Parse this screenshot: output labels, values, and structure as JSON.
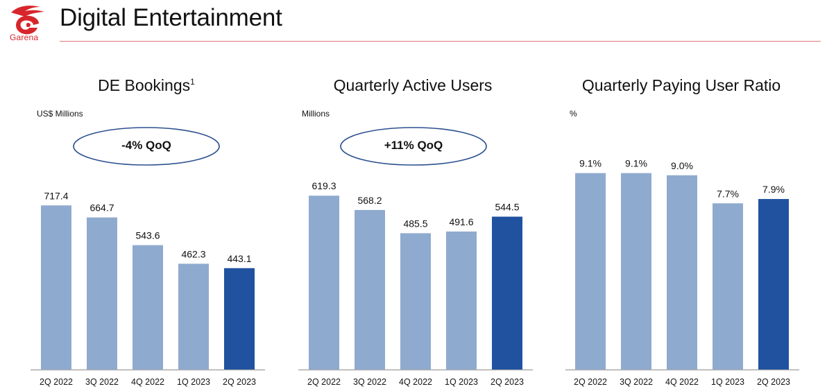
{
  "header": {
    "logo_text": "Garena",
    "title": "Digital Entertainment"
  },
  "colors": {
    "brand_red": "#d7262b",
    "bar_light": "#8faacf",
    "bar_highlight": "#21529f",
    "badge_outline": "#2b4f8f",
    "axis": "#aaaaaa"
  },
  "panels": [
    {
      "title": "DE Bookings",
      "title_footnote": "1",
      "unit": "US$ Millions",
      "badge": "-4% QoQ"
    },
    {
      "title": "Quarterly Active Users",
      "title_footnote": "",
      "unit": "Millions",
      "badge": "+11% QoQ"
    },
    {
      "title": "Quarterly Paying User Ratio",
      "title_footnote": "",
      "unit": "%",
      "badge": ""
    }
  ],
  "chart_data": [
    {
      "type": "bar",
      "title": "DE Bookings",
      "ylabel": "US$ Millions",
      "xlabel": "",
      "categories": [
        "2Q 2022",
        "3Q 2022",
        "4Q 2022",
        "1Q 2023",
        "2Q 2023"
      ],
      "values": [
        717.4,
        664.7,
        543.6,
        462.3,
        443.1
      ],
      "labels": [
        "717.4",
        "664.7",
        "543.6",
        "462.3",
        "443.1"
      ],
      "highlight_index": 4,
      "annotation": "-4% QoQ",
      "ylim": [
        0,
        1000
      ],
      "grid": false,
      "legend": "none"
    },
    {
      "type": "bar",
      "title": "Quarterly Active Users",
      "ylabel": "Millions",
      "xlabel": "",
      "categories": [
        "2Q 2022",
        "3Q 2022",
        "4Q 2022",
        "1Q 2023",
        "2Q 2023"
      ],
      "values": [
        619.3,
        568.2,
        485.5,
        491.6,
        544.5
      ],
      "labels": [
        "619.3",
        "568.2",
        "485.5",
        "491.6",
        "544.5"
      ],
      "highlight_index": 4,
      "annotation": "+11% QoQ",
      "ylim": [
        0,
        815
      ],
      "grid": false,
      "legend": "none"
    },
    {
      "type": "bar",
      "title": "Quarterly Paying User Ratio",
      "ylabel": "%",
      "xlabel": "",
      "categories": [
        "2Q 2022",
        "3Q 2022",
        "4Q 2022",
        "1Q 2023",
        "2Q 2023"
      ],
      "values": [
        9.1,
        9.1,
        9.0,
        7.7,
        7.9
      ],
      "labels": [
        "9.1%",
        "9.1%",
        "9.0%",
        "7.7%",
        "7.9%"
      ],
      "highlight_index": 4,
      "annotation": "",
      "ylim": [
        0,
        10.6
      ],
      "grid": false,
      "legend": "none"
    }
  ]
}
